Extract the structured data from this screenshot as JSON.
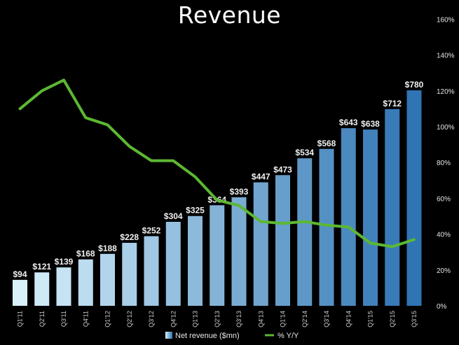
{
  "chart_data": {
    "type": "bar",
    "title": "Revenue",
    "categories": [
      "Q1'11",
      "Q2'11",
      "Q3'11",
      "Q4'11",
      "Q1'12",
      "Q2'12",
      "Q3'12",
      "Q4'12",
      "Q1'13",
      "Q2'13",
      "Q3'13",
      "Q4'13",
      "Q1'14",
      "Q2'14",
      "Q3'14",
      "Q4'14",
      "Q1'15",
      "Q2'15",
      "Q3'15"
    ],
    "series": [
      {
        "name": "Net revenue ($mn)",
        "type": "bar",
        "values": [
          94,
          121,
          139,
          168,
          188,
          228,
          252,
          304,
          325,
          364,
          393,
          447,
          473,
          534,
          568,
          643,
          638,
          712,
          780
        ],
        "labels": [
          "$94",
          "$121",
          "$139",
          "$168",
          "$188",
          "$228",
          "$252",
          "$304",
          "$325",
          "$364",
          "$393",
          "$447",
          "$473",
          "$534",
          "$568",
          "$643",
          "$638",
          "$712",
          "$780"
        ],
        "color_start": "#d8f1fb",
        "color_end": "#2f74b3"
      },
      {
        "name": "% Y/Y",
        "type": "line",
        "axis": "right",
        "values": [
          110,
          120,
          126,
          105,
          101,
          89,
          81,
          81,
          72,
          59,
          56,
          47,
          46,
          47,
          45,
          44,
          35,
          33,
          37
        ],
        "color": "#5cb832"
      }
    ],
    "ylim": [
      0,
      780
    ],
    "y2lim": [
      0,
      160
    ],
    "y2_ticks": [
      "0%",
      "20%",
      "40%",
      "60%",
      "80%",
      "100%",
      "120%",
      "140%",
      "160%"
    ],
    "legend_position": "bottom-center",
    "grid": false
  }
}
